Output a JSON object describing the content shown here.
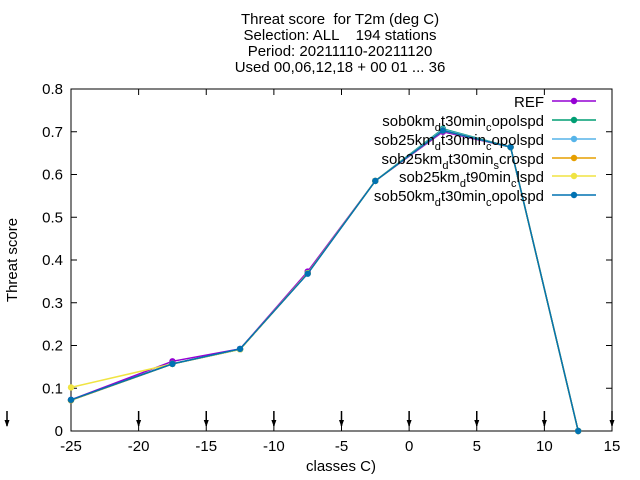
{
  "title_lines": [
    "Threat score  for T2m (deg C)",
    "Selection: ALL    194 stations",
    "Period: 20211110-20211120",
    "Used 00,06,12,18 + 00 01 ... 36"
  ],
  "chart_data": {
    "type": "line",
    "xlabel": "classes C)",
    "ylabel": "Threat score",
    "xlim": [
      -25,
      15
    ],
    "ylim": [
      0,
      0.8
    ],
    "xticks": [
      "-25",
      "-20",
      "-15",
      "-10",
      "-5",
      "0",
      "5",
      "10",
      "15"
    ],
    "yticks": [
      "0",
      "0.1",
      "0.2",
      "0.3",
      "0.4",
      "0.5",
      "0.6",
      "0.7",
      "0.8"
    ],
    "legend_position": "top-right",
    "x": [
      -25,
      -17.5,
      -12.5,
      -7.5,
      -2.5,
      2.5,
      7.5,
      12.5
    ],
    "series": [
      {
        "legend": {
          "main": "REF",
          "sub": "",
          "rest": ""
        },
        "color": "#9400d3",
        "values": [
          0.073,
          0.163,
          0.192,
          0.373,
          0.585,
          0.7,
          0.664,
          0.0
        ]
      },
      {
        "legend": {
          "main": "sob0km",
          "sub": "d",
          "rest": "t30min",
          "sub2": "c",
          "rest2": "opolspd"
        },
        "color": "#009e73",
        "values": [
          0.072,
          0.157,
          0.191,
          0.369,
          0.585,
          0.707,
          0.664,
          0.0
        ]
      },
      {
        "legend": {
          "main": "sob25km",
          "sub": "d",
          "rest": "t30min",
          "sub2": "c",
          "rest2": "opolspd"
        },
        "color": "#56b4e9",
        "values": [
          0.072,
          0.157,
          0.191,
          0.369,
          0.585,
          0.705,
          0.664,
          0.0
        ]
      },
      {
        "legend": {
          "main": "sob25km",
          "sub": "d",
          "rest": "t30min",
          "sub2": "s",
          "rest2": "crospd"
        },
        "color": "#e69f00",
        "values": [
          0.072,
          0.157,
          0.191,
          0.369,
          0.585,
          0.703,
          0.664,
          0.0
        ]
      },
      {
        "legend": {
          "main": "sob25km",
          "sub": "d",
          "rest": "t90min",
          "sub2": "c",
          "rest2": "lspd"
        },
        "color": "#f0e442",
        "values": [
          0.102,
          0.157,
          0.191,
          0.369,
          0.585,
          0.703,
          0.664,
          0.0
        ]
      },
      {
        "legend": {
          "main": "sob50km",
          "sub": "d",
          "rest": "t30min",
          "sub2": "c",
          "rest2": "opolspd"
        },
        "color": "#0072b2",
        "values": [
          0.073,
          0.157,
          0.192,
          0.368,
          0.585,
          0.703,
          0.664,
          0.0
        ]
      }
    ]
  }
}
